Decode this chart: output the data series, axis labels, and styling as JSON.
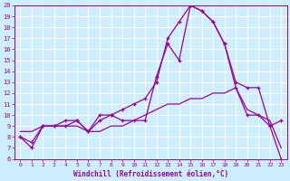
{
  "xlabel": "Windchill (Refroidissement éolien,°C)",
  "x_hours": [
    0,
    1,
    2,
    3,
    4,
    5,
    6,
    7,
    8,
    9,
    10,
    11,
    12,
    13,
    14,
    15,
    16,
    17,
    18,
    19,
    20,
    21,
    22,
    23
  ],
  "temp": [
    8.0,
    7.5,
    9.0,
    9.0,
    9.0,
    9.5,
    8.5,
    10.0,
    10.0,
    10.5,
    11.0,
    11.5,
    13.0,
    17.0,
    18.5,
    20.0,
    19.5,
    18.5,
    16.5,
    12.5,
    10.0,
    10.0,
    9.0,
    9.5
  ],
  "windchill": [
    8.0,
    7.0,
    9.0,
    9.0,
    9.5,
    9.5,
    8.5,
    9.5,
    10.0,
    9.5,
    9.5,
    9.5,
    13.5,
    16.5,
    15.0,
    20.0,
    19.5,
    18.5,
    16.5,
    13.0,
    12.5,
    12.5,
    9.0,
    6.0
  ],
  "mintemp": [
    8.5,
    8.5,
    9.0,
    9.0,
    9.0,
    9.0,
    8.5,
    8.5,
    9.0,
    9.0,
    9.5,
    10.0,
    10.5,
    11.0,
    11.0,
    11.5,
    11.5,
    12.0,
    12.0,
    12.5,
    10.5,
    10.0,
    9.5,
    7.0
  ],
  "color": "#990099",
  "bg_color": "#cceeff",
  "grid_color": "#aadddd",
  "ylim": [
    6,
    20
  ],
  "xlim": [
    -0.5,
    23.5
  ],
  "yticks": [
    6,
    7,
    8,
    9,
    10,
    11,
    12,
    13,
    14,
    15,
    16,
    17,
    18,
    19,
    20
  ],
  "xticks": [
    0,
    1,
    2,
    3,
    4,
    5,
    6,
    7,
    8,
    9,
    10,
    11,
    12,
    13,
    14,
    15,
    16,
    17,
    18,
    19,
    20,
    21,
    22,
    23
  ]
}
